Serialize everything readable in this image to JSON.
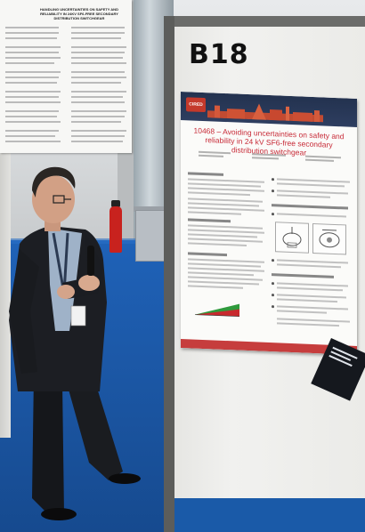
{
  "booth": {
    "code": "B18"
  },
  "left_poster": {
    "title": "Handling uncertainties on safety and reliability in 24kV SF6-free secondary distribution switchgear"
  },
  "poster": {
    "logo_text": "CIRED",
    "title": "10468 – Avoiding uncertainties on safety and reliability in 24 kV SF6-free secondary distribution switchgear",
    "header_color": "#26365a",
    "title_color": "#c82c39",
    "accent_color": "#c63d3d"
  },
  "scene": {
    "floor_color": "#1b56a3"
  }
}
